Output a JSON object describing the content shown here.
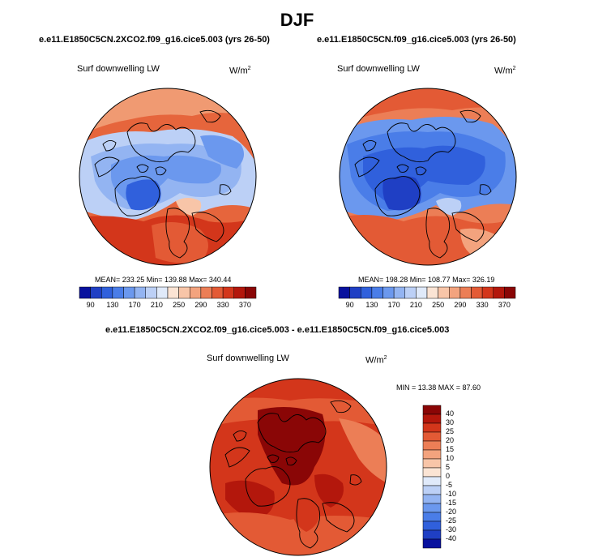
{
  "page_title": "DJF",
  "panels": [
    {
      "case": "e.e11.E1850C5CN.2XCO2.f09_g16.cice5.003 (yrs 26-50)",
      "variable": "Surf downwelling LW",
      "unit_base": "W/m",
      "unit_exp": "2",
      "stats": "MEAN= 233.25   Min= 139.88   Max= 340.44"
    },
    {
      "case": "e.e11.E1850C5CN.f09_g16.cice5.003 (yrs 26-50)",
      "variable": "Surf downwelling LW",
      "unit_base": "W/m",
      "unit_exp": "2",
      "stats": "MEAN= 198.28   Min= 108.77   Max= 326.19"
    }
  ],
  "colorbar_ticks": [
    "90",
    "130",
    "170",
    "210",
    "250",
    "290",
    "330",
    "370"
  ],
  "colorbar_colors": [
    "#08119e",
    "#1f3fc4",
    "#3060dc",
    "#4a7de8",
    "#6b98ee",
    "#93b4f2",
    "#bcd0f6",
    "#e0eafa",
    "#fbe4d4",
    "#f8c5a8",
    "#f3a37e",
    "#ec7e56",
    "#e35a35",
    "#d3361b",
    "#b3170c",
    "#8a0606"
  ],
  "diff_panel": {
    "title": "e.e11.E1850C5CN.2XCO2.f09_g16.cice5.003 - e.e11.E1850C5CN.f09_g16.cice5.003",
    "variable": "Surf downwelling LW",
    "unit_base": "W/m",
    "unit_exp": "2",
    "stats": "MIN =  13.38 MAX =  87.60"
  },
  "diff_colorbar_labels": [
    "40",
    "30",
    "25",
    "20",
    "15",
    "10",
    "5",
    "0",
    "-5",
    "-10",
    "-15",
    "-20",
    "-25",
    "-30",
    "-40"
  ],
  "diff_colorbar_colors": [
    "#8a0606",
    "#b3170c",
    "#d3361b",
    "#e35a35",
    "#ec7e56",
    "#f3a37e",
    "#f8c5a8",
    "#fbe4d4",
    "#e0eafa",
    "#bcd0f6",
    "#93b4f2",
    "#6b98ee",
    "#4a7de8",
    "#3060dc",
    "#1f3fc4",
    "#08119e"
  ]
}
